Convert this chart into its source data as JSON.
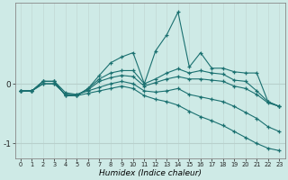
{
  "xlabel": "Humidex (Indice chaleur)",
  "background_color": "#ceeae6",
  "line_color": "#1a7070",
  "grid_color_v": "#c5ddd9",
  "grid_color_h": "#b8d0cc",
  "xmin": -0.5,
  "xmax": 23.5,
  "ymin": -1.25,
  "ymax": 1.35,
  "yticks": [
    -1,
    0
  ],
  "series": [
    {
      "x": [
        0,
        1,
        2,
        3,
        4,
        5,
        6,
        7,
        8,
        9,
        10,
        11,
        12,
        13,
        14,
        15,
        16,
        17,
        18,
        19,
        20,
        21,
        22,
        23
      ],
      "y": [
        -0.12,
        -0.12,
        0.04,
        0.04,
        -0.2,
        -0.2,
        -0.08,
        0.14,
        0.35,
        0.45,
        0.52,
        0.0,
        0.55,
        0.82,
        1.2,
        0.28,
        0.52,
        0.26,
        0.26,
        0.2,
        0.18,
        0.18,
        -0.3,
        -0.38
      ]
    },
    {
      "x": [
        0,
        1,
        2,
        3,
        4,
        5,
        6,
        7,
        8,
        9,
        10,
        11,
        12,
        13,
        14,
        15,
        16,
        17,
        18,
        19,
        20,
        21,
        22,
        23
      ],
      "y": [
        -0.12,
        -0.12,
        0.04,
        0.04,
        -0.2,
        -0.2,
        -0.08,
        0.08,
        0.18,
        0.22,
        0.22,
        0.0,
        0.08,
        0.18,
        0.25,
        0.18,
        0.22,
        0.18,
        0.16,
        0.06,
        0.04,
        -0.12,
        -0.3,
        -0.38
      ]
    },
    {
      "x": [
        0,
        1,
        2,
        3,
        4,
        5,
        6,
        7,
        8,
        9,
        10,
        11,
        12,
        13,
        14,
        15,
        16,
        17,
        18,
        19,
        20,
        21,
        22,
        23
      ],
      "y": [
        -0.12,
        -0.12,
        0.04,
        0.04,
        -0.15,
        -0.18,
        -0.1,
        0.04,
        0.1,
        0.14,
        0.12,
        -0.04,
        0.02,
        0.08,
        0.12,
        0.08,
        0.08,
        0.06,
        0.04,
        -0.04,
        -0.08,
        -0.18,
        -0.32,
        -0.38
      ]
    },
    {
      "x": [
        0,
        1,
        2,
        3,
        4,
        5,
        6,
        7,
        8,
        9,
        10,
        11,
        12,
        13,
        14,
        15,
        16,
        17,
        18,
        19,
        20,
        21,
        22,
        23
      ],
      "y": [
        -0.12,
        -0.12,
        0.0,
        0.0,
        -0.18,
        -0.18,
        -0.12,
        -0.06,
        0.0,
        0.04,
        0.0,
        -0.12,
        -0.14,
        -0.12,
        -0.08,
        -0.18,
        -0.22,
        -0.26,
        -0.3,
        -0.38,
        -0.48,
        -0.58,
        -0.72,
        -0.8
      ]
    },
    {
      "x": [
        0,
        1,
        2,
        3,
        4,
        5,
        6,
        7,
        8,
        9,
        10,
        11,
        12,
        13,
        14,
        15,
        16,
        17,
        18,
        19,
        20,
        21,
        22,
        23
      ],
      "y": [
        -0.12,
        -0.12,
        0.0,
        0.0,
        -0.18,
        -0.2,
        -0.16,
        -0.12,
        -0.08,
        -0.04,
        -0.08,
        -0.2,
        -0.26,
        -0.3,
        -0.36,
        -0.46,
        -0.55,
        -0.62,
        -0.7,
        -0.8,
        -0.9,
        -1.0,
        -1.08,
        -1.12
      ]
    }
  ]
}
